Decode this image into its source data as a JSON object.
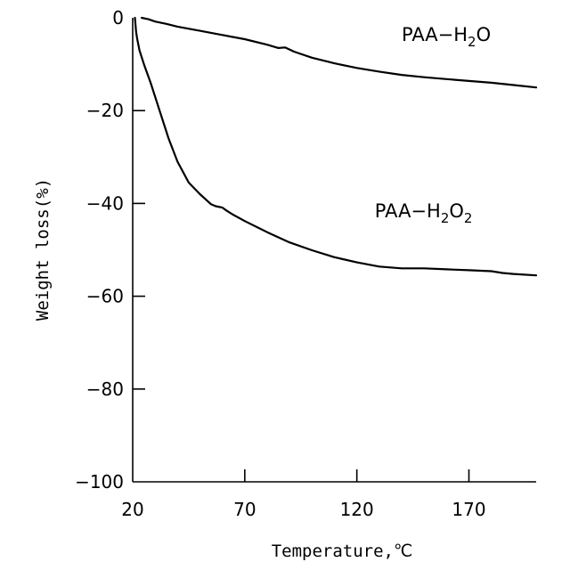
{
  "chart_data": {
    "type": "line",
    "xlabel": "Temperature,℃",
    "ylabel": "Weight loss(%)",
    "xlim": [
      20,
      200
    ],
    "ylim": [
      -100,
      0
    ],
    "xticks": [
      20,
      70,
      120,
      170
    ],
    "yticks": [
      0,
      -20,
      -40,
      -60,
      -80,
      -100
    ],
    "grid": false,
    "series": [
      {
        "name": "PAA-H2O",
        "label_parts": [
          "PAA−H",
          "2",
          "O"
        ],
        "label_at": [
          140,
          -5
        ],
        "x": [
          24,
          27,
          30,
          35,
          40,
          50,
          60,
          70,
          80,
          85,
          88,
          92,
          100,
          110,
          120,
          130,
          140,
          150,
          160,
          170,
          180,
          190,
          200
        ],
        "y": [
          0,
          -0.3,
          -0.8,
          -1.3,
          -1.9,
          -2.8,
          -3.7,
          -4.6,
          -5.8,
          -6.5,
          -6.4,
          -7.3,
          -8.6,
          -9.8,
          -10.8,
          -11.6,
          -12.3,
          -12.8,
          -13.2,
          -13.6,
          -14.0,
          -14.5,
          -15.0
        ]
      },
      {
        "name": "PAA-H2O2",
        "label_parts": [
          "PAA−H",
          "2",
          "O",
          "2"
        ],
        "label_at": [
          128,
          -43
        ],
        "x": [
          21,
          21.5,
          22,
          23,
          25,
          28,
          32,
          36,
          40,
          45,
          50,
          55,
          57,
          60,
          62,
          65,
          70,
          80,
          90,
          100,
          110,
          120,
          130,
          140,
          150,
          160,
          170,
          180,
          185,
          190,
          200
        ],
        "y": [
          0,
          -3,
          -4.5,
          -7,
          -10,
          -14,
          -20,
          -26,
          -31,
          -35.5,
          -38,
          -40.2,
          -40.6,
          -40.9,
          -41.6,
          -42.5,
          -43.8,
          -46.2,
          -48.4,
          -50.1,
          -51.6,
          -52.7,
          -53.6,
          -54.0,
          -54.0,
          -54.2,
          -54.4,
          -54.6,
          -55.0,
          -55.2,
          -55.5
        ]
      }
    ]
  }
}
